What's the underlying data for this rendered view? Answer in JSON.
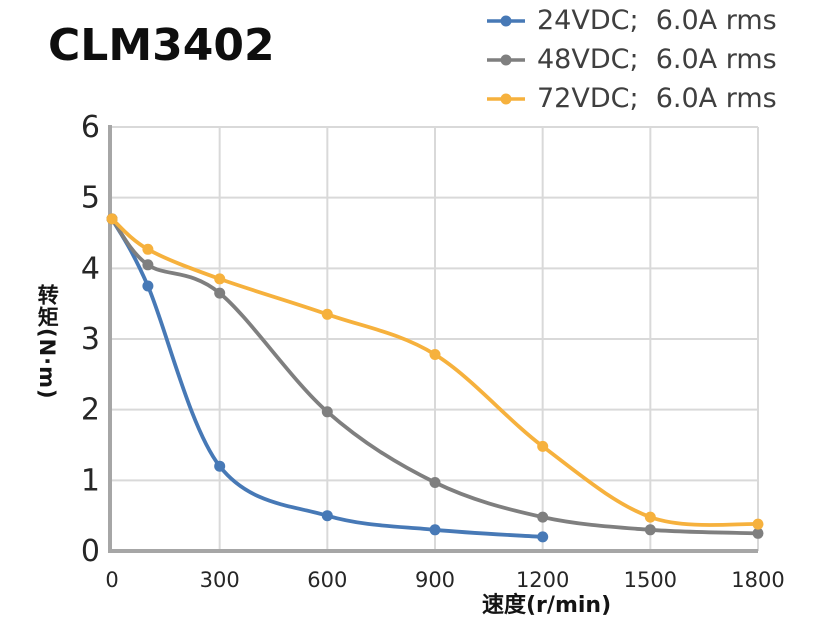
{
  "page_title": "CLM3402",
  "colors": {
    "series_blue": "#4779B6",
    "series_gray": "#7F7F7F",
    "series_yellow": "#F6B13D",
    "axis_line": "#A6A6A6",
    "gridline": "#D9D9D9",
    "tick_text": "#262626",
    "legend_text": "#3F3F3F",
    "title_text": "#0E0E0E"
  },
  "chart_data": {
    "type": "line",
    "title": "CLM3402",
    "xlabel": "速度(r/min)",
    "ylabel": "转矩(N·m)",
    "xlim": [
      0,
      1800
    ],
    "ylim": [
      0,
      6
    ],
    "x_ticks": [
      0,
      300,
      600,
      900,
      1200,
      1500,
      1800
    ],
    "y_ticks": [
      0,
      1,
      2,
      3,
      4,
      5,
      6
    ],
    "grid": true,
    "legend_position": "top-right",
    "series": [
      {
        "name": "24VDC;  6.0A rms",
        "color": "#4779B6",
        "points": [
          [
            0,
            4.7
          ],
          [
            100,
            3.75
          ],
          [
            300,
            1.2
          ],
          [
            600,
            0.5
          ],
          [
            900,
            0.3
          ],
          [
            1200,
            0.2
          ]
        ]
      },
      {
        "name": "48VDC;  6.0A rms",
        "color": "#7F7F7F",
        "points": [
          [
            0,
            4.7
          ],
          [
            100,
            4.05
          ],
          [
            300,
            3.65
          ],
          [
            600,
            1.97
          ],
          [
            900,
            0.97
          ],
          [
            1200,
            0.48
          ],
          [
            1500,
            0.3
          ],
          [
            1800,
            0.25
          ]
        ]
      },
      {
        "name": "72VDC;  6.0A rms",
        "color": "#F6B13D",
        "points": [
          [
            0,
            4.7
          ],
          [
            100,
            4.27
          ],
          [
            300,
            3.85
          ],
          [
            600,
            3.35
          ],
          [
            900,
            2.78
          ],
          [
            1200,
            1.48
          ],
          [
            1500,
            0.48
          ],
          [
            1800,
            0.38
          ]
        ]
      }
    ]
  }
}
